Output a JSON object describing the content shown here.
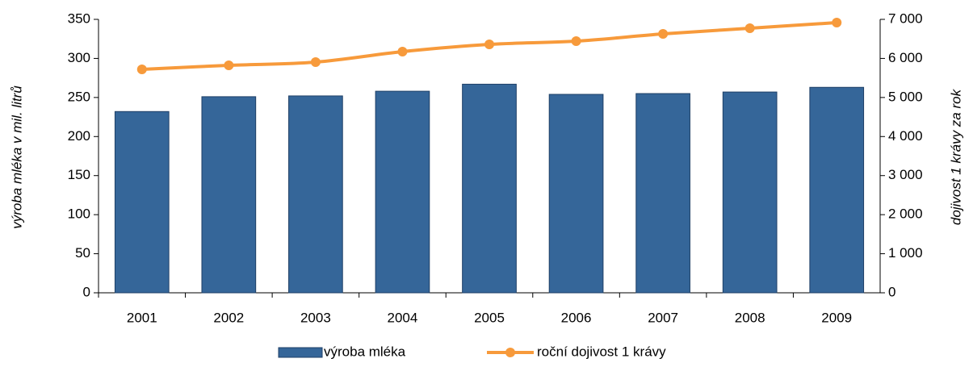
{
  "chart_data": {
    "type": "bar",
    "categories": [
      "2001",
      "2002",
      "2003",
      "2004",
      "2005",
      "2006",
      "2007",
      "2008",
      "2009"
    ],
    "series": [
      {
        "name": "výroba mléka",
        "type": "bar",
        "color": "#356699",
        "values": [
          232,
          251,
          252,
          258,
          267,
          254,
          255,
          257,
          263
        ]
      },
      {
        "name": "roční dojivost 1 krávy",
        "type": "line",
        "axis": "y2",
        "color": "#f79a3b",
        "values": [
          5720,
          5823,
          5906,
          6174,
          6360,
          6442,
          6628,
          6773,
          6917
        ]
      }
    ],
    "ylabel": "výroba mléka v mil. litrů",
    "y2label": "dojivost 1 krávy za rok",
    "ylim": [
      0,
      350
    ],
    "yticks": [
      0,
      50,
      100,
      150,
      200,
      250,
      300,
      350
    ],
    "y2lim": [
      0,
      7000
    ],
    "y2ticks": [
      0,
      {
        "value": 1000,
        "label": "1 000"
      },
      {
        "value": 2000,
        "label": "2 000"
      },
      {
        "value": 3000,
        "label": "3 000"
      },
      {
        "value": 4000,
        "label": "4 000"
      },
      {
        "value": 5000,
        "label": "5 000"
      },
      {
        "value": 6000,
        "label": "6 000"
      },
      {
        "value": 7000,
        "label": "7 000"
      }
    ],
    "grid": false,
    "legend": "bottom"
  }
}
